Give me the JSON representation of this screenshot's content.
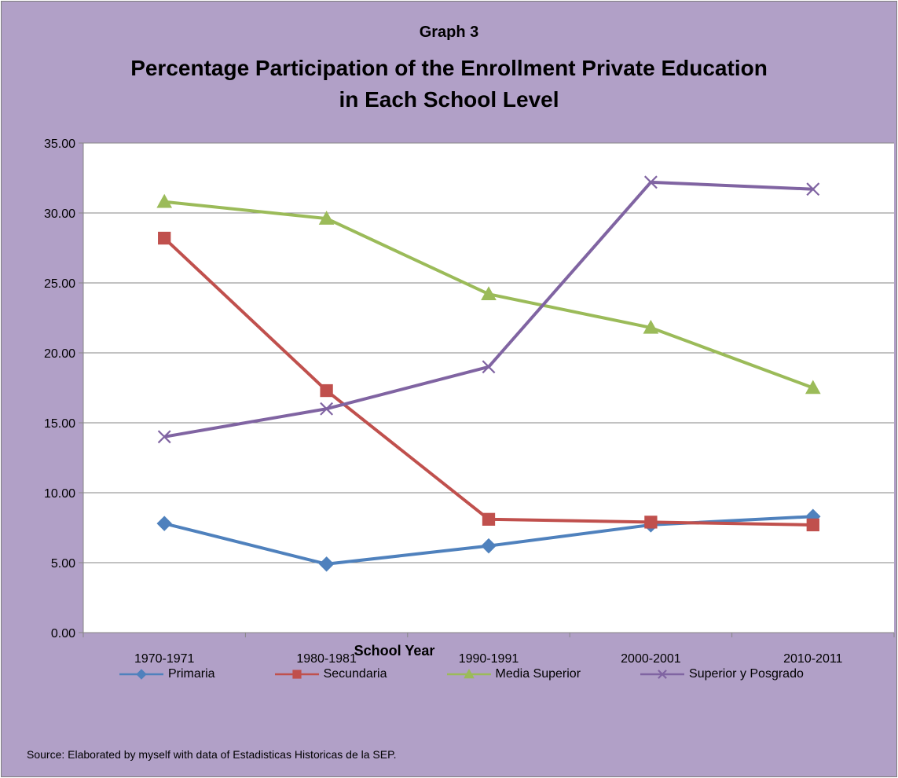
{
  "chart_data": {
    "type": "line",
    "title_prefix": "Graph 3",
    "title": "Percentage Participation of the Enrollment Private Education",
    "title_line2": "in Each School Level",
    "xlabel": "School Year",
    "ylabel": "",
    "categories": [
      "1970-1971",
      "1980-1981",
      "1990-1991",
      "2000-2001",
      "2010-2011"
    ],
    "ylim": [
      0,
      35
    ],
    "yticks": [
      "0.00",
      "5.00",
      "10.00",
      "15.00",
      "20.00",
      "25.00",
      "30.00",
      "35.00"
    ],
    "grid": true,
    "legend_position": "bottom",
    "series": [
      {
        "name": "Primaria",
        "color": "#4f81bd",
        "marker": "diamond",
        "values": [
          7.8,
          4.9,
          6.2,
          7.7,
          8.3
        ]
      },
      {
        "name": "Secundaria",
        "color": "#c0504d",
        "marker": "square",
        "values": [
          28.2,
          17.3,
          8.1,
          7.9,
          7.7
        ]
      },
      {
        "name": "Media Superior",
        "color": "#9bbb59",
        "marker": "triangle",
        "values": [
          30.8,
          29.6,
          24.2,
          21.8,
          17.5
        ]
      },
      {
        "name": "Superior y Posgrado",
        "color": "#8064a2",
        "marker": "x",
        "values": [
          14.0,
          16.0,
          19.0,
          32.2,
          31.7
        ]
      }
    ],
    "source": "Source: Elaborated by myself with data of Estadisticas Historicas de la SEP."
  }
}
